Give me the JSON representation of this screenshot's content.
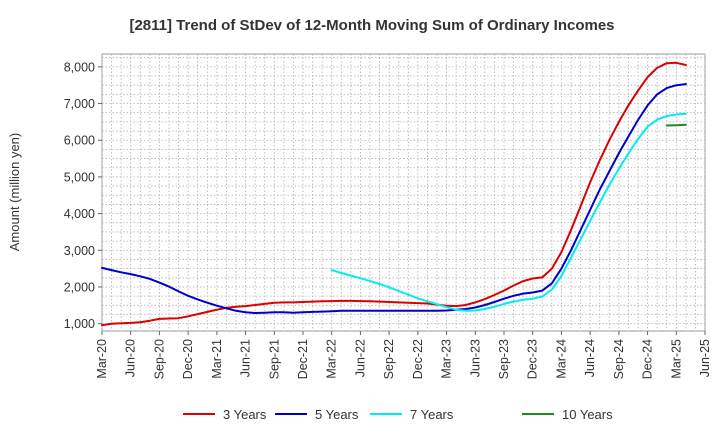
{
  "chart_data": {
    "type": "line",
    "title": "[2811]  Trend of StDev of 12-Month Moving Sum of Ordinary Incomes",
    "xlabel": "",
    "ylabel": "Amount (million yen)",
    "ylim": [
      800,
      8350
    ],
    "yticks": [
      1000,
      2000,
      3000,
      4000,
      5000,
      6000,
      7000,
      8000
    ],
    "ytick_labels": [
      "1,000",
      "2,000",
      "3,000",
      "4,000",
      "5,000",
      "6,000",
      "7,000",
      "8,000"
    ],
    "xticks": [
      "Mar-20",
      "Jun-20",
      "Sep-20",
      "Dec-20",
      "Mar-21",
      "Jun-21",
      "Sep-21",
      "Dec-21",
      "Mar-22",
      "Jun-22",
      "Sep-22",
      "Dec-22",
      "Mar-23",
      "Jun-23",
      "Sep-23",
      "Dec-23",
      "Mar-24",
      "Jun-24",
      "Sep-24",
      "Dec-24",
      "Mar-25",
      "Jun-25"
    ],
    "grid": true,
    "legend_position": "bottom",
    "series": [
      {
        "name": "3 Years",
        "color": "#dd0000",
        "points": [
          [
            "Mar-20",
            960
          ],
          [
            "Apr-20",
            1000
          ],
          [
            "May-20",
            1010
          ],
          [
            "Jun-20",
            1020
          ],
          [
            "Jul-20",
            1040
          ],
          [
            "Aug-20",
            1080
          ],
          [
            "Sep-20",
            1130
          ],
          [
            "Oct-20",
            1140
          ],
          [
            "Nov-20",
            1150
          ],
          [
            "Dec-20",
            1200
          ],
          [
            "Jan-21",
            1260
          ],
          [
            "Feb-21",
            1320
          ],
          [
            "Mar-21",
            1380
          ],
          [
            "Apr-21",
            1430
          ],
          [
            "May-21",
            1460
          ],
          [
            "Jun-21",
            1480
          ],
          [
            "Jul-21",
            1510
          ],
          [
            "Aug-21",
            1540
          ],
          [
            "Sep-21",
            1570
          ],
          [
            "Oct-21",
            1580
          ],
          [
            "Nov-21",
            1580
          ],
          [
            "Dec-21",
            1590
          ],
          [
            "Jan-22",
            1600
          ],
          [
            "Feb-22",
            1610
          ],
          [
            "Mar-22",
            1615
          ],
          [
            "Apr-22",
            1620
          ],
          [
            "May-22",
            1620
          ],
          [
            "Jun-22",
            1615
          ],
          [
            "Jul-22",
            1610
          ],
          [
            "Aug-22",
            1600
          ],
          [
            "Sep-22",
            1590
          ],
          [
            "Oct-22",
            1580
          ],
          [
            "Nov-22",
            1570
          ],
          [
            "Dec-22",
            1560
          ],
          [
            "Jan-23",
            1550
          ],
          [
            "Feb-23",
            1520
          ],
          [
            "Mar-23",
            1490
          ],
          [
            "Apr-23",
            1480
          ],
          [
            "May-23",
            1510
          ],
          [
            "Jun-23",
            1580
          ],
          [
            "Jul-23",
            1670
          ],
          [
            "Aug-23",
            1780
          ],
          [
            "Sep-23",
            1900
          ],
          [
            "Oct-23",
            2040
          ],
          [
            "Nov-23",
            2160
          ],
          [
            "Dec-23",
            2230
          ],
          [
            "Jan-24",
            2260
          ],
          [
            "Feb-24",
            2500
          ],
          [
            "Mar-24",
            2950
          ],
          [
            "Apr-24",
            3550
          ],
          [
            "May-24",
            4200
          ],
          [
            "Jun-24",
            4850
          ],
          [
            "Jul-24",
            5450
          ],
          [
            "Aug-24",
            6000
          ],
          [
            "Sep-24",
            6500
          ],
          [
            "Oct-24",
            6950
          ],
          [
            "Nov-24",
            7350
          ],
          [
            "Dec-24",
            7720
          ],
          [
            "Jan-25",
            7970
          ],
          [
            "Feb-25",
            8100
          ],
          [
            "Mar-25",
            8110
          ],
          [
            "Apr-25",
            8050
          ]
        ]
      },
      {
        "name": "5 Years",
        "color": "#0000cc",
        "points": [
          [
            "Mar-20",
            2520
          ],
          [
            "Apr-20",
            2460
          ],
          [
            "May-20",
            2400
          ],
          [
            "Jun-20",
            2350
          ],
          [
            "Jul-20",
            2290
          ],
          [
            "Aug-20",
            2220
          ],
          [
            "Sep-20",
            2120
          ],
          [
            "Oct-20",
            2010
          ],
          [
            "Nov-20",
            1880
          ],
          [
            "Dec-20",
            1760
          ],
          [
            "Jan-21",
            1660
          ],
          [
            "Feb-21",
            1570
          ],
          [
            "Mar-21",
            1490
          ],
          [
            "Apr-21",
            1420
          ],
          [
            "May-21",
            1350
          ],
          [
            "Jun-21",
            1310
          ],
          [
            "Jul-21",
            1290
          ],
          [
            "Aug-21",
            1300
          ],
          [
            "Sep-21",
            1310
          ],
          [
            "Oct-21",
            1310
          ],
          [
            "Nov-21",
            1300
          ],
          [
            "Dec-21",
            1310
          ],
          [
            "Jan-22",
            1320
          ],
          [
            "Feb-22",
            1330
          ],
          [
            "Mar-22",
            1340
          ],
          [
            "Apr-22",
            1350
          ],
          [
            "May-22",
            1350
          ],
          [
            "Jun-22",
            1350
          ],
          [
            "Jul-22",
            1350
          ],
          [
            "Aug-22",
            1350
          ],
          [
            "Sep-22",
            1350
          ],
          [
            "Oct-22",
            1350
          ],
          [
            "Nov-22",
            1350
          ],
          [
            "Dec-22",
            1350
          ],
          [
            "Jan-23",
            1350
          ],
          [
            "Feb-23",
            1350
          ],
          [
            "Mar-23",
            1360
          ],
          [
            "Apr-23",
            1380
          ],
          [
            "May-23",
            1400
          ],
          [
            "Jun-23",
            1440
          ],
          [
            "Jul-23",
            1510
          ],
          [
            "Aug-23",
            1590
          ],
          [
            "Sep-23",
            1680
          ],
          [
            "Oct-23",
            1760
          ],
          [
            "Nov-23",
            1820
          ],
          [
            "Dec-23",
            1850
          ],
          [
            "Jan-24",
            1900
          ],
          [
            "Feb-24",
            2100
          ],
          [
            "Mar-24",
            2500
          ],
          [
            "Apr-24",
            3000
          ],
          [
            "May-24",
            3550
          ],
          [
            "Jun-24",
            4100
          ],
          [
            "Jul-24",
            4650
          ],
          [
            "Aug-24",
            5150
          ],
          [
            "Sep-24",
            5650
          ],
          [
            "Oct-24",
            6100
          ],
          [
            "Nov-24",
            6550
          ],
          [
            "Dec-24",
            6950
          ],
          [
            "Jan-25",
            7250
          ],
          [
            "Feb-25",
            7420
          ],
          [
            "Mar-25",
            7500
          ],
          [
            "Apr-25",
            7530
          ]
        ]
      },
      {
        "name": "7 Years",
        "color": "#00eeee",
        "points": [
          [
            "Mar-22",
            2460
          ],
          [
            "Apr-22",
            2380
          ],
          [
            "May-22",
            2310
          ],
          [
            "Jun-22",
            2240
          ],
          [
            "Jul-22",
            2160
          ],
          [
            "Aug-22",
            2080
          ],
          [
            "Sep-22",
            1990
          ],
          [
            "Oct-22",
            1890
          ],
          [
            "Nov-22",
            1790
          ],
          [
            "Dec-22",
            1690
          ],
          [
            "Jan-23",
            1610
          ],
          [
            "Feb-23",
            1530
          ],
          [
            "Mar-23",
            1450
          ],
          [
            "Apr-23",
            1380
          ],
          [
            "May-23",
            1350
          ],
          [
            "Jun-23",
            1360
          ],
          [
            "Jul-23",
            1400
          ],
          [
            "Aug-23",
            1460
          ],
          [
            "Sep-23",
            1540
          ],
          [
            "Oct-23",
            1600
          ],
          [
            "Nov-23",
            1650
          ],
          [
            "Dec-23",
            1680
          ],
          [
            "Jan-24",
            1740
          ],
          [
            "Feb-24",
            1930
          ],
          [
            "Mar-24",
            2300
          ],
          [
            "Apr-24",
            2800
          ],
          [
            "May-24",
            3300
          ],
          [
            "Jun-24",
            3800
          ],
          [
            "Jul-24",
            4300
          ],
          [
            "Aug-24",
            4780
          ],
          [
            "Sep-24",
            5220
          ],
          [
            "Oct-24",
            5640
          ],
          [
            "Nov-24",
            6030
          ],
          [
            "Dec-24",
            6370
          ],
          [
            "Jan-25",
            6560
          ],
          [
            "Feb-25",
            6660
          ],
          [
            "Mar-25",
            6700
          ],
          [
            "Apr-25",
            6720
          ]
        ]
      },
      {
        "name": "10 Years",
        "color": "#228822",
        "points": [
          [
            "Feb-25",
            6400
          ],
          [
            "Mar-25",
            6410
          ],
          [
            "Apr-25",
            6420
          ]
        ]
      }
    ]
  }
}
